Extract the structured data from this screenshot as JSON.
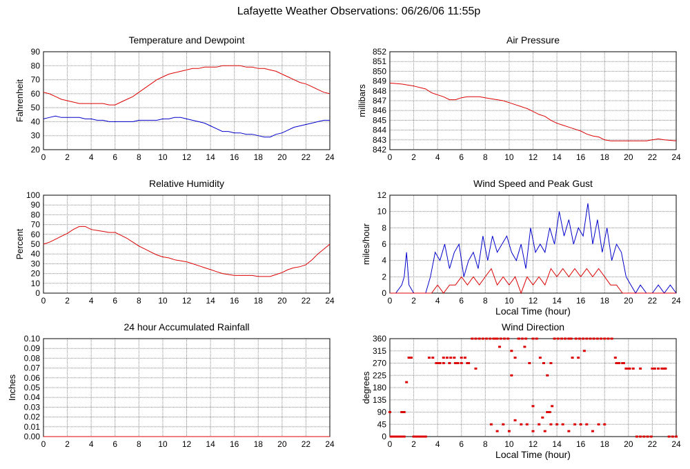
{
  "page": {
    "title": "Lafayette Weather Observations: 06/26/06 11:55p"
  },
  "colors": {
    "red": "#dd0000",
    "blue": "#0000cc",
    "grid": "#888888",
    "frame": "#000000"
  },
  "chart_data": [
    {
      "id": "temperature",
      "type": "line",
      "title": "Temperature and Dewpoint",
      "xlabel": "",
      "ylabel": "Fahrenheit",
      "xlim": [
        0,
        24
      ],
      "ylim": [
        20,
        90
      ],
      "xticks": [
        0,
        2,
        4,
        6,
        8,
        10,
        12,
        14,
        16,
        18,
        20,
        22,
        24
      ],
      "yticks": [
        20,
        30,
        40,
        50,
        60,
        70,
        80,
        90
      ],
      "grid": true,
      "series": [
        {
          "color": "#dd0000",
          "x": [
            0,
            0.5,
            1,
            1.5,
            2,
            2.5,
            3,
            3.5,
            4,
            4.5,
            5,
            5.5,
            6,
            6.5,
            7,
            7.5,
            8,
            8.5,
            9,
            9.5,
            10,
            10.5,
            11,
            11.5,
            12,
            12.5,
            13,
            13.5,
            14,
            14.5,
            15,
            15.5,
            16,
            16.5,
            17,
            17.5,
            18,
            18.5,
            19,
            19.5,
            20,
            20.5,
            21,
            21.5,
            22,
            22.5,
            23,
            23.5,
            24
          ],
          "y": [
            61,
            60,
            58,
            56,
            55,
            54,
            53,
            53,
            53,
            53,
            53,
            52,
            52,
            54,
            56,
            58,
            61,
            64,
            67,
            70,
            72,
            74,
            75,
            76,
            77,
            78,
            78,
            79,
            79,
            79,
            80,
            80,
            80,
            80,
            79,
            79,
            78,
            78,
            77,
            76,
            74,
            72,
            70,
            68,
            67,
            65,
            63,
            61,
            60
          ]
        },
        {
          "color": "#0000cc",
          "x": [
            0,
            0.5,
            1,
            1.5,
            2,
            2.5,
            3,
            3.5,
            4,
            4.5,
            5,
            5.5,
            6,
            6.5,
            7,
            7.5,
            8,
            8.5,
            9,
            9.5,
            10,
            10.5,
            11,
            11.5,
            12,
            12.5,
            13,
            13.5,
            14,
            14.5,
            15,
            15.5,
            16,
            16.5,
            17,
            17.5,
            18,
            18.5,
            19,
            19.5,
            20,
            20.5,
            21,
            21.5,
            22,
            22.5,
            23,
            23.5,
            24
          ],
          "y": [
            42,
            43,
            44,
            43,
            43,
            43,
            43,
            42,
            42,
            41,
            41,
            40,
            40,
            40,
            40,
            40,
            41,
            41,
            41,
            41,
            42,
            42,
            43,
            43,
            42,
            41,
            40,
            39,
            37,
            35,
            33,
            33,
            32,
            32,
            31,
            31,
            30,
            29,
            29,
            31,
            32,
            34,
            36,
            37,
            38,
            39,
            40,
            41,
            41
          ]
        }
      ]
    },
    {
      "id": "pressure",
      "type": "line",
      "title": "Air Pressure",
      "xlabel": "",
      "ylabel": "millibars",
      "xlim": [
        0,
        24
      ],
      "ylim": [
        842,
        852
      ],
      "xticks": [
        0,
        2,
        4,
        6,
        8,
        10,
        12,
        14,
        16,
        18,
        20,
        22,
        24
      ],
      "yticks": [
        842,
        843,
        844,
        845,
        846,
        847,
        848,
        849,
        850,
        851,
        852
      ],
      "grid": true,
      "series": [
        {
          "color": "#dd0000",
          "x": [
            0,
            1,
            2,
            3,
            3.5,
            4,
            4.5,
            5,
            5.5,
            6,
            6.5,
            7,
            7.5,
            8,
            8.5,
            9,
            9.5,
            10,
            10.5,
            11,
            11.5,
            12,
            12.5,
            13,
            13.5,
            14,
            14.5,
            15,
            15.5,
            16,
            16.5,
            17,
            17.5,
            18,
            18.5,
            19,
            20,
            21,
            21.5,
            22,
            22.5,
            23,
            24
          ],
          "y": [
            848.8,
            848.7,
            848.5,
            848.2,
            847.8,
            847.6,
            847.4,
            847.1,
            847.1,
            847.3,
            847.4,
            847.4,
            847.4,
            847.3,
            847.2,
            847.1,
            847.0,
            846.8,
            846.6,
            846.4,
            846.2,
            845.9,
            845.6,
            845.4,
            845.0,
            844.7,
            844.5,
            844.3,
            844.1,
            843.9,
            843.6,
            843.4,
            843.3,
            843.0,
            842.9,
            842.9,
            842.9,
            842.9,
            842.9,
            843.0,
            843.1,
            843.0,
            842.9
          ]
        }
      ]
    },
    {
      "id": "humidity",
      "type": "line",
      "title": "Relative Humidity",
      "xlabel": "",
      "ylabel": "Percent",
      "xlim": [
        0,
        24
      ],
      "ylim": [
        0,
        100
      ],
      "xticks": [
        0,
        2,
        4,
        6,
        8,
        10,
        12,
        14,
        16,
        18,
        20,
        22,
        24
      ],
      "yticks": [
        0,
        10,
        20,
        30,
        40,
        50,
        60,
        70,
        80,
        90,
        100
      ],
      "grid": true,
      "series": [
        {
          "color": "#dd0000",
          "x": [
            0,
            0.5,
            1,
            1.5,
            2,
            2.5,
            3,
            3.5,
            4,
            4.5,
            5,
            5.5,
            6,
            6.5,
            7,
            7.5,
            8,
            8.5,
            9,
            9.5,
            10,
            10.5,
            11,
            11.5,
            12,
            12.5,
            13,
            13.5,
            14,
            14.5,
            15,
            15.5,
            16,
            16.5,
            17,
            17.5,
            18,
            18.5,
            19,
            19.5,
            20,
            20.5,
            21,
            21.5,
            22,
            22.5,
            23,
            23.5,
            24
          ],
          "y": [
            50,
            52,
            55,
            58,
            61,
            65,
            68,
            68,
            65,
            64,
            63,
            62,
            62,
            59,
            56,
            52,
            48,
            45,
            42,
            39,
            37,
            36,
            34,
            33,
            32,
            30,
            28,
            26,
            24,
            22,
            20,
            19,
            18,
            18,
            18,
            18,
            17,
            17,
            17,
            19,
            21,
            24,
            26,
            27,
            29,
            34,
            40,
            45,
            50
          ]
        }
      ]
    },
    {
      "id": "wind-speed",
      "type": "line",
      "title": "Wind Speed and Peak Gust",
      "xlabel": "Local Time (hour)",
      "ylabel": "miles/hour",
      "xlim": [
        0,
        24
      ],
      "ylim": [
        0,
        12
      ],
      "xticks": [
        0,
        2,
        4,
        6,
        8,
        10,
        12,
        14,
        16,
        18,
        20,
        22,
        24
      ],
      "yticks": [
        0,
        2,
        4,
        6,
        8,
        10,
        12
      ],
      "grid": true,
      "series": [
        {
          "color": "#0000cc",
          "x": [
            0,
            0.5,
            1,
            1.2,
            1.4,
            1.6,
            2,
            2.5,
            3,
            3.4,
            3.8,
            4.2,
            4.6,
            5,
            5.4,
            5.8,
            6.2,
            6.6,
            7,
            7.4,
            7.8,
            8.2,
            8.6,
            9,
            9.4,
            9.8,
            10.2,
            10.6,
            11,
            11.4,
            11.8,
            12.2,
            12.6,
            13,
            13.4,
            13.8,
            14.2,
            14.6,
            15,
            15.4,
            15.8,
            16.2,
            16.6,
            17,
            17.4,
            17.8,
            18.2,
            18.6,
            19,
            19.4,
            19.8,
            20.2,
            20.6,
            21,
            21.5,
            22,
            22.5,
            23,
            23.5,
            24
          ],
          "y": [
            0,
            0,
            1,
            2,
            5,
            1,
            0,
            0,
            0,
            2,
            5,
            4,
            6,
            3,
            5,
            6,
            2,
            4,
            5,
            3,
            7,
            4,
            7,
            5,
            6,
            7,
            5,
            4,
            6,
            3,
            8,
            5,
            6,
            5,
            8,
            6,
            10,
            7,
            9,
            6,
            8,
            7,
            11,
            6,
            9,
            5,
            8,
            4,
            6,
            5,
            2,
            1,
            0,
            1,
            0,
            0,
            1,
            0,
            1,
            0
          ]
        },
        {
          "color": "#dd0000",
          "x": [
            0,
            3,
            3.5,
            4,
            4.5,
            5,
            5.5,
            6,
            6.5,
            7,
            7.5,
            8,
            8.5,
            9,
            9.5,
            10,
            10.5,
            11,
            11.5,
            12,
            12.5,
            13,
            13.5,
            14,
            14.5,
            15,
            15.5,
            16,
            16.5,
            17,
            17.5,
            18,
            18.5,
            19,
            19.5,
            20,
            24
          ],
          "y": [
            0,
            0,
            0,
            1,
            0,
            1,
            1,
            2,
            1,
            2,
            1,
            2,
            3,
            1,
            2,
            1,
            2,
            0,
            2,
            1,
            2,
            1,
            3,
            2,
            3,
            2,
            3,
            2,
            3,
            2,
            3,
            2,
            1,
            1,
            0,
            0,
            0
          ]
        }
      ]
    },
    {
      "id": "rainfall",
      "type": "line",
      "title": "24 hour Accumulated Rainfall",
      "xlabel": "",
      "ylabel": "Inches",
      "xlim": [
        0,
        24
      ],
      "ylim": [
        0,
        0.1
      ],
      "xticks": [
        0,
        2,
        4,
        6,
        8,
        10,
        12,
        14,
        16,
        18,
        20,
        22,
        24
      ],
      "yticks": [
        0.0,
        0.01,
        0.02,
        0.03,
        0.04,
        0.05,
        0.06,
        0.07,
        0.08,
        0.09,
        0.1
      ],
      "ytick_labels": [
        "0.00",
        "0.01",
        "0.02",
        "0.03",
        "0.04",
        "0.05",
        "0.06",
        "0.07",
        "0.08",
        "0.09",
        "0.10"
      ],
      "grid": true,
      "series": [
        {
          "color": "#dd0000",
          "x": [
            0,
            24
          ],
          "y": [
            0,
            0
          ]
        }
      ]
    },
    {
      "id": "wind-direction",
      "type": "scatter",
      "title": "Wind Direction",
      "xlabel": "Local Time (hour)",
      "ylabel": "degrees",
      "xlim": [
        0,
        24
      ],
      "ylim": [
        0,
        360
      ],
      "xticks": [
        0,
        2,
        4,
        6,
        8,
        10,
        12,
        14,
        16,
        18,
        20,
        22,
        24
      ],
      "yticks": [
        0,
        45,
        90,
        135,
        180,
        225,
        270,
        315,
        360
      ],
      "grid": true,
      "series": [
        {
          "color": "#dd0000",
          "x": [
            0.1,
            0.3,
            0.5,
            0.7,
            0.9,
            1.0,
            1.2,
            1.4,
            1.6,
            1.8,
            2.0,
            2.2,
            2.4,
            2.6,
            2.8,
            3.0,
            3.3,
            3.6,
            3.9,
            4.2,
            4.5,
            4.8,
            5.1,
            5.4,
            5.7,
            6.0,
            6.3,
            6.6,
            6.9,
            7.2,
            7.5,
            7.8,
            8.1,
            8.4,
            8.7,
            9.0,
            9.3,
            9.6,
            9.9,
            10.2,
            10.5,
            10.8,
            11.1,
            11.4,
            11.7,
            12.0,
            12.3,
            12.6,
            12.9,
            13.2,
            13.5,
            13.8,
            14.1,
            14.4,
            14.7,
            15.0,
            15.3,
            15.6,
            15.9,
            16.2,
            16.5,
            16.8,
            17.1,
            17.4,
            17.7,
            18.0,
            18.3,
            18.6,
            18.9,
            19.2,
            19.5,
            19.8,
            20.1,
            20.4,
            20.7,
            21.0,
            21.3,
            21.6,
            21.9,
            22.2,
            22.5,
            22.8,
            23.1,
            23.4,
            23.7,
            24.0,
            0.0,
            1.0,
            1.2,
            8.5,
            9.0,
            9.5,
            10.0,
            10.5,
            11.0,
            11.5,
            12.0,
            12.5,
            13.0,
            13.5,
            14.0,
            14.5,
            15.0,
            15.5,
            16.0,
            16.5,
            17.0,
            17.5,
            18.0,
            12.0,
            13.2,
            13.6,
            10.2,
            12.8,
            13.4,
            6.0,
            7.2,
            8.8,
            9.2,
            10.8,
            11.3,
            15.2,
            15.8,
            16.3,
            19.0,
            19.6,
            20.0,
            21.0,
            22.0,
            23.0,
            4.0,
            4.5,
            5.0,
            5.5,
            6.5
          ],
          "y": [
            0,
            0,
            0,
            0,
            0,
            90,
            90,
            200,
            290,
            290,
            0,
            0,
            0,
            0,
            0,
            0,
            290,
            290,
            270,
            270,
            290,
            290,
            290,
            290,
            270,
            290,
            290,
            270,
            360,
            360,
            360,
            360,
            360,
            360,
            360,
            360,
            360,
            360,
            360,
            315,
            290,
            360,
            360,
            360,
            270,
            360,
            360,
            290,
            270,
            225,
            270,
            360,
            360,
            360,
            360,
            360,
            290,
            360,
            360,
            360,
            360,
            360,
            360,
            360,
            360,
            360,
            360,
            360,
            290,
            270,
            270,
            250,
            250,
            250,
            0,
            0,
            0,
            0,
            0,
            250,
            250,
            250,
            250,
            0,
            0,
            0,
            90,
            0,
            0,
            45,
            20,
            45,
            20,
            60,
            45,
            45,
            20,
            45,
            20,
            45,
            45,
            45,
            20,
            45,
            45,
            45,
            20,
            45,
            45,
            112,
            90,
            112,
            225,
            70,
            90,
            270,
            250,
            360,
            330,
            360,
            330,
            360,
            290,
            315,
            270,
            270,
            250,
            250,
            250,
            250,
            270,
            270,
            270,
            270,
            270
          ]
        }
      ]
    }
  ]
}
